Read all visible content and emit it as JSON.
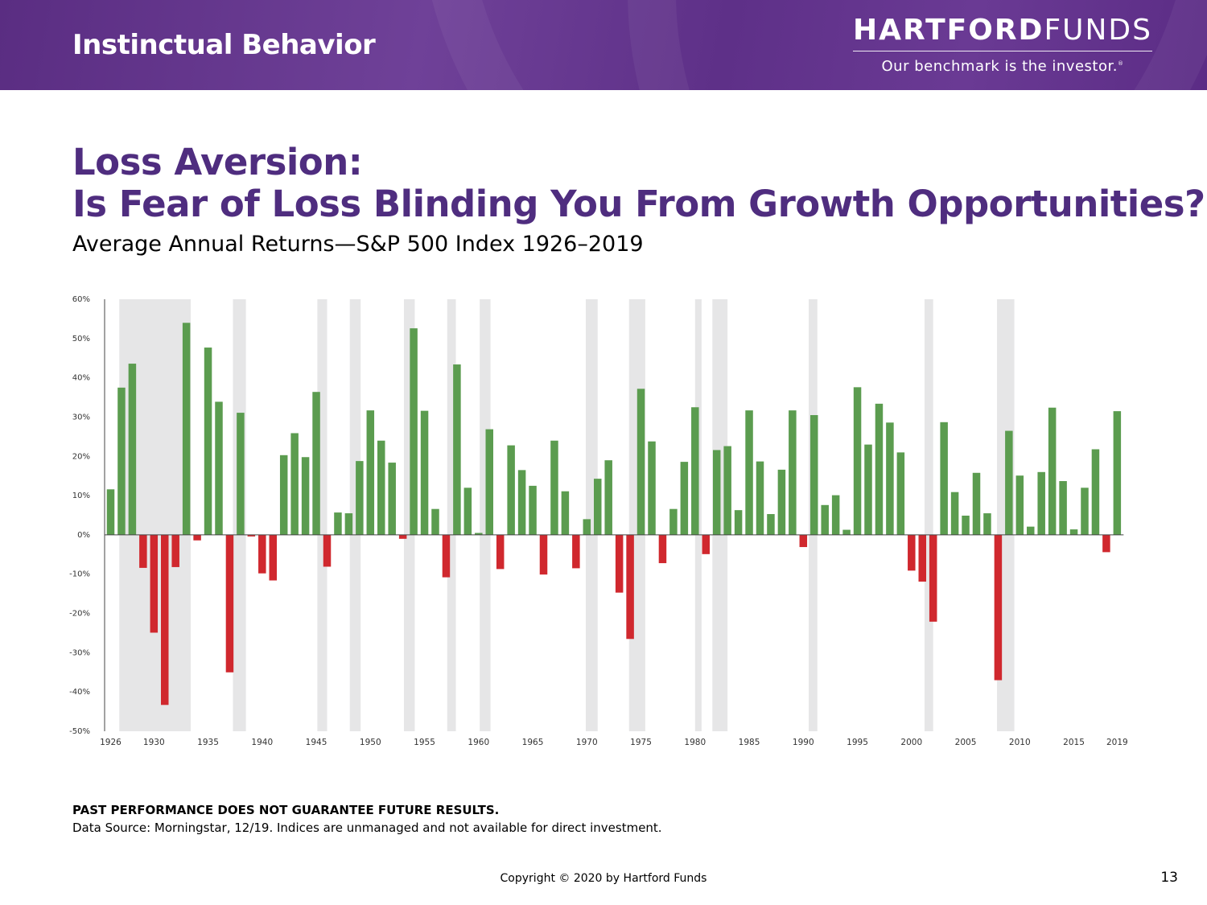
{
  "header": {
    "section_title": "Instinctual Behavior",
    "brand_bold": "HARTFORD",
    "brand_light": "FUNDS",
    "brand_tagline": "Our benchmark is the investor.",
    "brand_mark": "®"
  },
  "headline": {
    "line1": "Loss Aversion:",
    "line2": "Is Fear of Loss Blinding You From Growth Opportunities?"
  },
  "subtitle": "Average Annual Returns—S&P 500 Index 1926–2019",
  "chart_data": {
    "type": "bar",
    "title": "Average Annual Returns—S&P 500 Index 1926–2019",
    "xlabel": "",
    "ylabel": "",
    "ylim": [
      -50,
      60
    ],
    "y_ticks": [
      60,
      50,
      40,
      30,
      20,
      10,
      0,
      -10,
      -20,
      -30,
      -40,
      -50
    ],
    "y_tick_labels": [
      "60%",
      "50%",
      "40%",
      "30%",
      "20%",
      "10%",
      "0%",
      "-10%",
      "-20%",
      "-30%",
      "-40%",
      "-50%"
    ],
    "x_tick_labels": [
      "1926",
      "1930",
      "1935",
      "1940",
      "1945",
      "1950",
      "1955",
      "1960",
      "1965",
      "1970",
      "1975",
      "1980",
      "1985",
      "1990",
      "1995",
      "2000",
      "2005",
      "2010",
      "2015",
      "2019"
    ],
    "years": [
      1926,
      1927,
      1928,
      1929,
      1930,
      1931,
      1932,
      1933,
      1934,
      1935,
      1936,
      1937,
      1938,
      1939,
      1940,
      1941,
      1942,
      1943,
      1944,
      1945,
      1946,
      1947,
      1948,
      1949,
      1950,
      1951,
      1952,
      1953,
      1954,
      1955,
      1956,
      1957,
      1958,
      1959,
      1960,
      1961,
      1962,
      1963,
      1964,
      1965,
      1966,
      1967,
      1968,
      1969,
      1970,
      1971,
      1972,
      1973,
      1974,
      1975,
      1976,
      1977,
      1978,
      1979,
      1980,
      1981,
      1982,
      1983,
      1984,
      1985,
      1986,
      1987,
      1988,
      1989,
      1990,
      1991,
      1992,
      1993,
      1994,
      1995,
      1996,
      1997,
      1998,
      1999,
      2000,
      2001,
      2002,
      2003,
      2004,
      2005,
      2006,
      2007,
      2008,
      2009,
      2010,
      2011,
      2012,
      2013,
      2014,
      2015,
      2016,
      2017,
      2018,
      2019
    ],
    "values": [
      11.6,
      37.5,
      43.6,
      -8.4,
      -24.9,
      -43.3,
      -8.2,
      54.0,
      -1.4,
      47.7,
      33.9,
      -35.0,
      31.1,
      -0.4,
      -9.8,
      -11.6,
      20.3,
      25.9,
      19.8,
      36.4,
      -8.1,
      5.7,
      5.5,
      18.8,
      31.7,
      24.0,
      18.4,
      -1.0,
      52.6,
      31.6,
      6.6,
      -10.8,
      43.4,
      12.0,
      0.5,
      26.9,
      -8.7,
      22.8,
      16.5,
      12.5,
      -10.1,
      24.0,
      11.1,
      -8.5,
      4.0,
      14.3,
      19.0,
      -14.7,
      -26.5,
      37.2,
      23.8,
      -7.2,
      6.6,
      18.6,
      32.5,
      -4.9,
      21.6,
      22.6,
      6.3,
      31.7,
      18.7,
      5.3,
      16.6,
      31.7,
      -3.1,
      30.5,
      7.6,
      10.1,
      1.3,
      37.6,
      23.0,
      33.4,
      28.6,
      21.0,
      -9.1,
      -11.9,
      -22.1,
      28.7,
      10.9,
      4.9,
      15.8,
      5.5,
      -37.0,
      26.5,
      15.1,
      2.1,
      16.0,
      32.4,
      13.7,
      1.4,
      12.0,
      21.8,
      -4.4,
      31.5
    ],
    "recession_bands": [
      [
        1926.8,
        1933.4
      ],
      [
        1937.3,
        1938.5
      ],
      [
        1945.1,
        1946
      ],
      [
        1948.1,
        1949.1
      ],
      [
        1953.1,
        1954.1
      ],
      [
        1957.1,
        1957.9
      ],
      [
        1960.1,
        1961.1
      ],
      [
        1969.9,
        1971
      ],
      [
        1973.9,
        1975.4
      ],
      [
        1980,
        1980.6
      ],
      [
        1981.6,
        1983
      ],
      [
        1990.5,
        1991.3
      ],
      [
        2001.2,
        2002
      ],
      [
        2007.9,
        2009.5
      ]
    ],
    "colors": {
      "positive": "#5b9c4f",
      "negative": "#d0282e",
      "band": "#e6e6e7",
      "axis": "#444444"
    },
    "grid": false,
    "legend": "none"
  },
  "footer": {
    "disclaimer": "PAST PERFORMANCE DOES NOT GUARANTEE FUTURE RESULTS.",
    "source": "Data Source: Morningstar, 12/19. Indices are unmanaged and not available for direct investment.",
    "copyright": "Copyright © 2020 by Hartford Funds",
    "page_number": "13"
  }
}
